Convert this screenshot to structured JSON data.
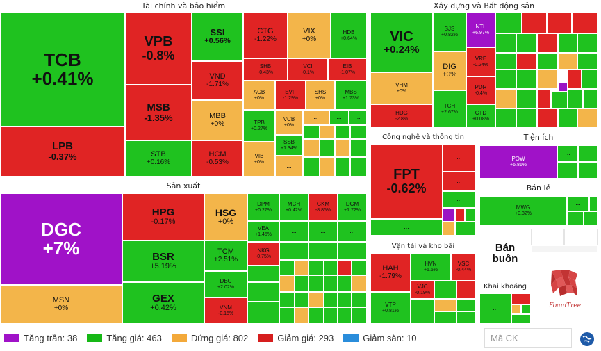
{
  "sections": {
    "finance": "Tài chính và bảo hiểm",
    "construction": "Xây dựng và Bất động sản",
    "manufacturing": "Sản xuất",
    "tech": "Công nghệ và thông tin",
    "utilities": "Tiện ích",
    "retail": "Bán lẻ",
    "wholesale": "Bán buôn",
    "transport": "Vận tải và kho bãi",
    "mining": "Khai khoáng"
  },
  "tiles": {
    "tcb": {
      "t": "TCB",
      "v": "+0.41%"
    },
    "lpb": {
      "t": "LPB",
      "v": "-0.37%"
    },
    "vpb": {
      "t": "VPB",
      "v": "-0.8%"
    },
    "msb": {
      "t": "MSB",
      "v": "-1.35%"
    },
    "stb": {
      "t": "STB",
      "v": "+0.16%"
    },
    "ssi": {
      "t": "SSI",
      "v": "+0.56%"
    },
    "vnd": {
      "t": "VND",
      "v": "-1.71%"
    },
    "mbb": {
      "t": "MBB",
      "v": "+0%"
    },
    "hcm": {
      "t": "HCM",
      "v": "-0.53%"
    },
    "ctg": {
      "t": "CTG",
      "v": "-1.22%"
    },
    "vix": {
      "t": "VIX",
      "v": "+0%"
    },
    "hdb": {
      "t": "HDB",
      "v": "+0.64%"
    },
    "shb": {
      "t": "SHB",
      "v": "-0.43%"
    },
    "vci": {
      "t": "VCI",
      "v": "-0.1%"
    },
    "eib": {
      "t": "EIB",
      "v": "-1.07%"
    },
    "acb": {
      "t": "ACB",
      "v": "+0%"
    },
    "evf": {
      "t": "EVF",
      "v": "-1.29%"
    },
    "shs": {
      "t": "SHS",
      "v": "+0%"
    },
    "mbs": {
      "t": "MBS",
      "v": "+1.73%"
    },
    "tpb": {
      "t": "TPB",
      "v": "+0.27%"
    },
    "vcb": {
      "t": "VCB",
      "v": "+0%"
    },
    "ssb": {
      "t": "SSB",
      "v": "+1.34%"
    },
    "vib": {
      "t": "VIB",
      "v": "+0%"
    },
    "vic": {
      "t": "VIC",
      "v": "+0.24%"
    },
    "sjs": {
      "t": "SJS",
      "v": "+0.82%"
    },
    "ntl": {
      "t": "NTL",
      "v": "+6.97%"
    },
    "vhm": {
      "t": "VHM",
      "v": "+0%"
    },
    "dig": {
      "t": "DIG",
      "v": "+0%"
    },
    "vre": {
      "t": "VRE",
      "v": "-0.24%"
    },
    "pdr": {
      "t": "PDR",
      "v": "-0.4%"
    },
    "hdg": {
      "t": "HDG",
      "v": "-2.8%"
    },
    "tch": {
      "t": "TCH",
      "v": "+2.67%"
    },
    "ctd": {
      "t": "CTD",
      "v": "+0.08%"
    },
    "dgc": {
      "t": "DGC",
      "v": "+7%"
    },
    "msn": {
      "t": "MSN",
      "v": "+0%"
    },
    "hpg": {
      "t": "HPG",
      "v": "-0.17%"
    },
    "bsr": {
      "t": "BSR",
      "v": "+5.19%"
    },
    "gex": {
      "t": "GEX",
      "v": "+0.42%"
    },
    "hsg": {
      "t": "HSG",
      "v": "+0%"
    },
    "tcm": {
      "t": "TCM",
      "v": "+2.51%"
    },
    "dbc": {
      "t": "DBC",
      "v": "+2.02%"
    },
    "vnm": {
      "t": "VNM",
      "v": "-0.15%"
    },
    "nkg": {
      "t": "NKG",
      "v": "-0.75%"
    },
    "dpm": {
      "t": "DPM",
      "v": "+0.27%"
    },
    "mch": {
      "t": "MCH",
      "v": "+0.42%"
    },
    "gkm": {
      "t": "GKM",
      "v": "-8.85%"
    },
    "dcm": {
      "t": "DCM",
      "v": "+1.72%"
    },
    "vea": {
      "t": "VEA",
      "v": "+1.45%"
    },
    "fpt": {
      "t": "FPT",
      "v": "-0.62%"
    },
    "pow": {
      "t": "POW",
      "v": "+6.81%"
    },
    "mwg": {
      "t": "MWG",
      "v": "+0.32%"
    },
    "hah": {
      "t": "HAH",
      "v": "-1.79%"
    },
    "hvn": {
      "t": "HVN",
      "v": "+5.5%"
    },
    "vsc": {
      "t": "VSC",
      "v": "-0.44%"
    },
    "vtp": {
      "t": "VTP",
      "v": "+0.81%"
    },
    "vjc": {
      "t": "VJC",
      "v": "-0.19%"
    }
  },
  "dots": "...",
  "logo_text": "FoamTree",
  "legend": {
    "ceiling": {
      "label": "Tăng trần: 38",
      "color": "#a012c8"
    },
    "up": {
      "label": "Tăng giá: 463",
      "color": "#16b816"
    },
    "flat": {
      "label": "Đứng giá: 802",
      "color": "#f3a93a"
    },
    "down": {
      "label": "Giảm giá: 293",
      "color": "#d61e1e"
    },
    "floor": {
      "label": "Giảm sàn: 10",
      "color": "#2a8ddb"
    }
  },
  "search": {
    "placeholder": "Mã CK"
  },
  "icons": {
    "globe": "globe-icon",
    "logo": "foamtree-logo"
  }
}
